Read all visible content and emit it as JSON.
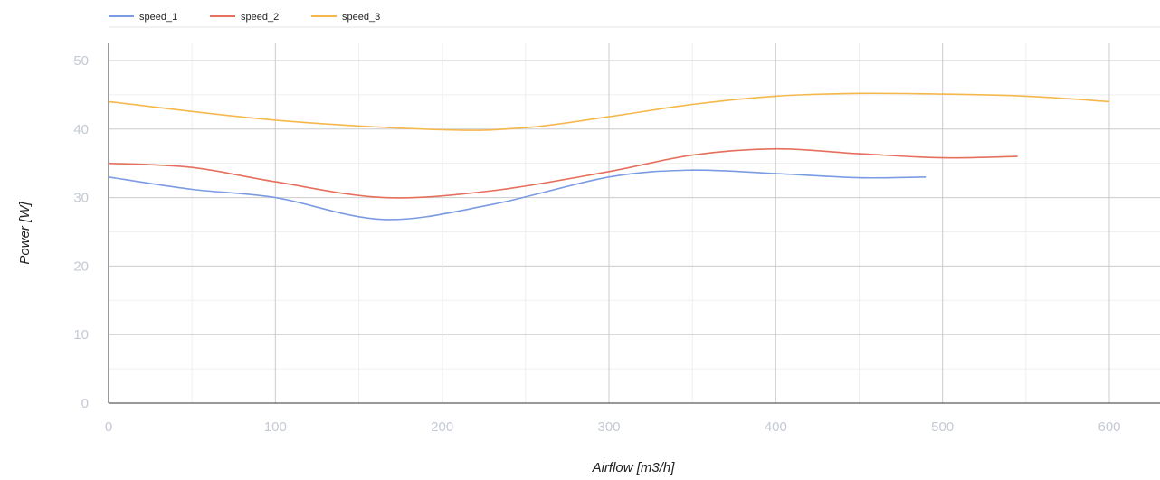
{
  "chart_data": {
    "type": "line",
    "title": "",
    "xlabel": "Airflow [m3/h]",
    "ylabel": "Power [W]",
    "xlim": [
      0,
      625
    ],
    "ylim": [
      0,
      52
    ],
    "x_ticks": [
      0,
      100,
      200,
      300,
      400,
      500,
      600
    ],
    "y_ticks": [
      0,
      10,
      20,
      30,
      40,
      50
    ],
    "x_tick_labels": [
      "0",
      "100",
      "200",
      "300",
      "400",
      "500",
      "600"
    ],
    "y_tick_labels": [
      "0",
      "10",
      "20",
      "30",
      "40",
      "50"
    ],
    "grid": true,
    "legend_position": "top-left",
    "smooth": true,
    "series": [
      {
        "name": "speed_1",
        "color": "#7b9be3",
        "x": [
          0,
          50,
          100,
          165,
          230,
          300,
          350,
          400,
          450,
          490
        ],
        "y": [
          33,
          31.2,
          30,
          26.8,
          29,
          33,
          34,
          33.5,
          32.9,
          33
        ]
      },
      {
        "name": "speed_2",
        "color": "#e5705d",
        "x": [
          0,
          50,
          100,
          165,
          230,
          300,
          350,
          400,
          450,
          500,
          545
        ],
        "y": [
          35,
          34.4,
          32.3,
          30,
          31,
          33.8,
          36.2,
          37.1,
          36.4,
          35.8,
          36
        ]
      },
      {
        "name": "speed_3",
        "color": "#f6b84d",
        "x": [
          0,
          100,
          200,
          250,
          300,
          350,
          400,
          450,
          500,
          550,
          600
        ],
        "y": [
          44,
          41.3,
          39.9,
          40.2,
          41.8,
          43.6,
          44.8,
          45.2,
          45.1,
          44.8,
          44
        ]
      }
    ]
  }
}
